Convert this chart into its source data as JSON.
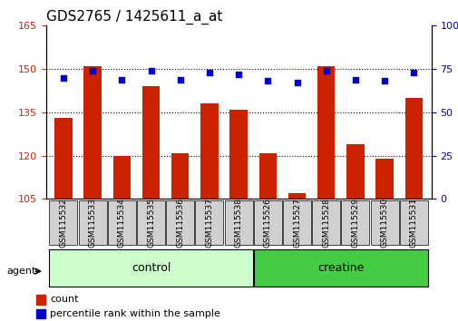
{
  "title": "GDS2765 / 1425611_a_at",
  "samples": [
    "GSM115532",
    "GSM115533",
    "GSM115534",
    "GSM115535",
    "GSM115536",
    "GSM115537",
    "GSM115538",
    "GSM115526",
    "GSM115527",
    "GSM115528",
    "GSM115529",
    "GSM115530",
    "GSM115531"
  ],
  "counts": [
    133,
    151,
    120,
    144,
    121,
    138,
    136,
    121,
    107,
    151,
    124,
    119,
    140
  ],
  "percentiles": [
    70,
    74,
    69,
    74,
    69,
    73,
    72,
    68,
    67,
    74,
    69,
    68,
    73
  ],
  "ylim_left": [
    105,
    165
  ],
  "ylim_right": [
    0,
    100
  ],
  "yticks_left": [
    105,
    120,
    135,
    150,
    165
  ],
  "yticks_right": [
    0,
    25,
    50,
    75,
    100
  ],
  "bar_color": "#cc2200",
  "dot_color": "#0000cc",
  "control_color": "#ccffcc",
  "creatine_color": "#44cc44",
  "control_indices": [
    0,
    1,
    2,
    3,
    4,
    5,
    6
  ],
  "creatine_indices": [
    7,
    8,
    9,
    10,
    11,
    12
  ],
  "control_label": "control",
  "creatine_label": "creatine",
  "agent_label": "agent",
  "legend_count": "count",
  "legend_percentile": "percentile rank within the sample",
  "bar_width": 0.6,
  "grid_lines": [
    120,
    135,
    150
  ],
  "title_fontsize": 11,
  "tick_fontsize": 8,
  "label_fontsize": 9,
  "bg_color": "#ffffff",
  "sample_box_color": "#d0d0d0"
}
